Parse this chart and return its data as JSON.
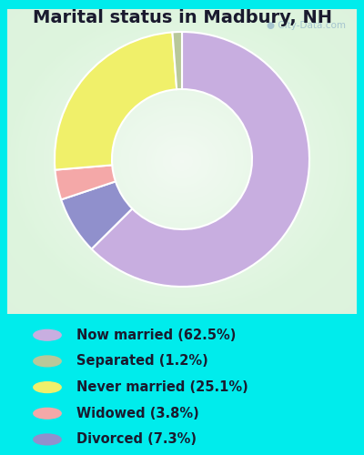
{
  "title": "Marital status in Madbury, NH",
  "slices": [
    62.5,
    7.3,
    3.8,
    25.1,
    1.2
  ],
  "slice_order": [
    "Now married",
    "Divorced",
    "Widowed",
    "Never married",
    "Separated"
  ],
  "labels": [
    "Now married (62.5%)",
    "Separated (1.2%)",
    "Never married (25.1%)",
    "Widowed (3.8%)",
    "Divorced (7.3%)"
  ],
  "legend_colors": [
    "#c8aee0",
    "#b8c89a",
    "#f0f06a",
    "#f4a8a8",
    "#9090cc"
  ],
  "pie_colors": [
    "#c8aee0",
    "#9090cc",
    "#f4a8a8",
    "#f0f06a",
    "#b8c89a"
  ],
  "bg_color": "#00ecec",
  "title_fontsize": 14,
  "legend_fontsize": 10.5,
  "donut_width": 0.45
}
